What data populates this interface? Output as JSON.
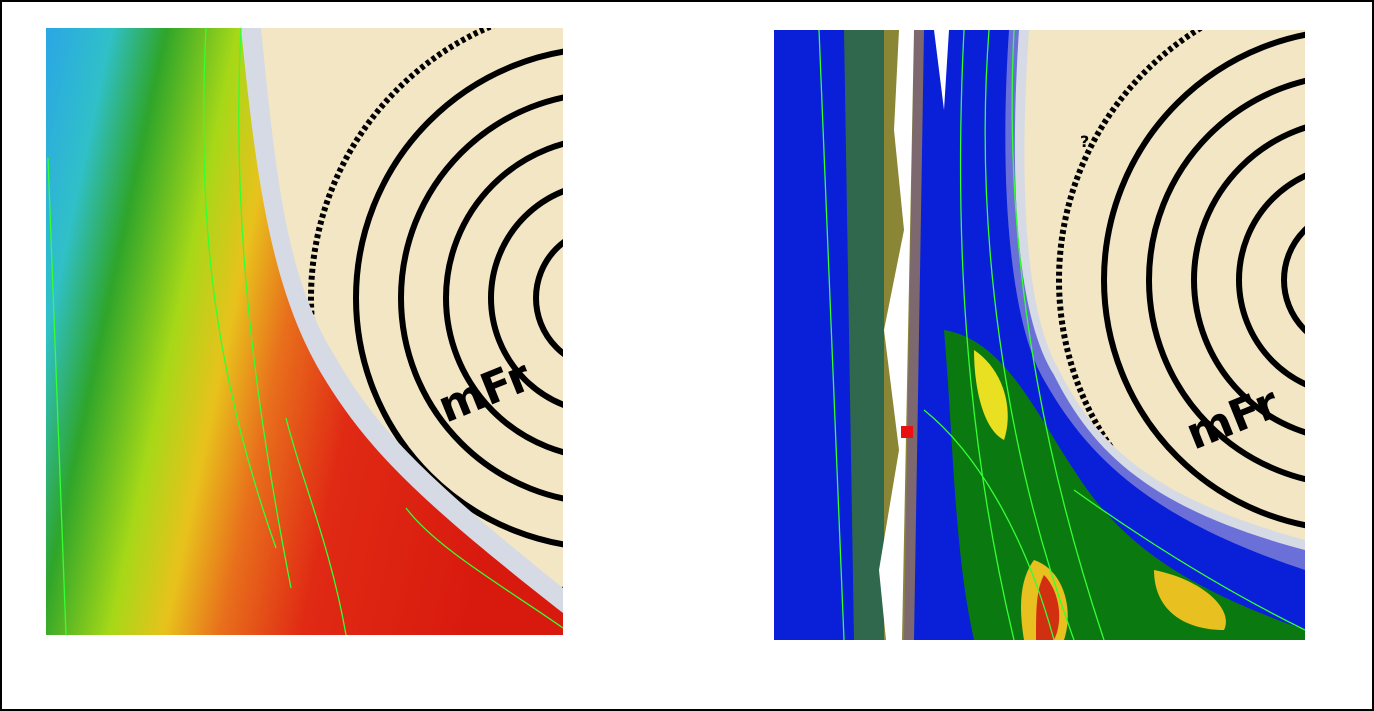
{
  "panels": [
    {
      "label": "mFr"
    },
    {
      "label": "mFr",
      "marker": "?"
    }
  ]
}
